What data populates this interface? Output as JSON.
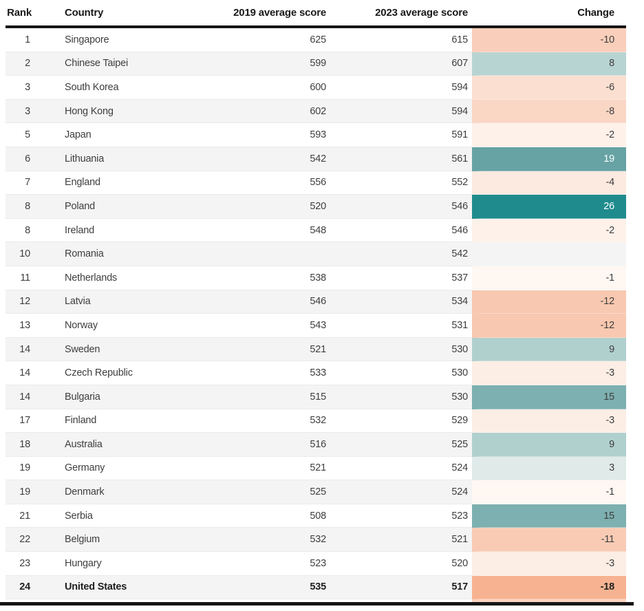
{
  "chart_data": {
    "type": "table",
    "columns": [
      "Rank",
      "Country",
      "2019 average score",
      "2023 average score",
      "Change"
    ],
    "rows": [
      {
        "rank": "1",
        "country": "Singapore",
        "score_2019": "625",
        "score_2023": "615",
        "change": "-10",
        "change_bg": "#f9ceba",
        "change_text_color": "#3e3e3e",
        "bold": false
      },
      {
        "rank": "2",
        "country": "Chinese Taipei",
        "score_2019": "599",
        "score_2023": "607",
        "change": "8",
        "change_bg": "#b8d4d2",
        "change_text_color": "#3e3e3e",
        "bold": false
      },
      {
        "rank": "3",
        "country": "South Korea",
        "score_2019": "600",
        "score_2023": "594",
        "change": "-6",
        "change_bg": "#fbdfd1",
        "change_text_color": "#3e3e3e",
        "bold": false
      },
      {
        "rank": "3",
        "country": "Hong Kong",
        "score_2019": "602",
        "score_2023": "594",
        "change": "-8",
        "change_bg": "#fad6c5",
        "change_text_color": "#3e3e3e",
        "bold": false
      },
      {
        "rank": "5",
        "country": "Japan",
        "score_2019": "593",
        "score_2023": "591",
        "change": "-2",
        "change_bg": "#fdf1ea",
        "change_text_color": "#3e3e3e",
        "bold": false
      },
      {
        "rank": "6",
        "country": "Lithuania",
        "score_2019": "542",
        "score_2023": "561",
        "change": "19",
        "change_bg": "#67a3a4",
        "change_text_color": "#ffffff",
        "bold": false
      },
      {
        "rank": "7",
        "country": "England",
        "score_2019": "556",
        "score_2023": "552",
        "change": "-4",
        "change_bg": "#fceae0",
        "change_text_color": "#3e3e3e",
        "bold": false
      },
      {
        "rank": "8",
        "country": "Poland",
        "score_2019": "520",
        "score_2023": "546",
        "change": "26",
        "change_bg": "#1f8b8d",
        "change_text_color": "#ffffff",
        "bold": false
      },
      {
        "rank": "8",
        "country": "Ireland",
        "score_2019": "548",
        "score_2023": "546",
        "change": "-2",
        "change_bg": "#fdf1ea",
        "change_text_color": "#3e3e3e",
        "bold": false
      },
      {
        "rank": "10",
        "country": "Romania",
        "score_2019": "",
        "score_2023": "542",
        "change": "",
        "change_bg": "",
        "change_text_color": "#3e3e3e",
        "bold": false
      },
      {
        "rank": "11",
        "country": "Netherlands",
        "score_2019": "538",
        "score_2023": "537",
        "change": "-1",
        "change_bg": "#fef7f2",
        "change_text_color": "#3e3e3e",
        "bold": false
      },
      {
        "rank": "12",
        "country": "Latvia",
        "score_2019": "546",
        "score_2023": "534",
        "change": "-12",
        "change_bg": "#f8c8b0",
        "change_text_color": "#3e3e3e",
        "bold": false
      },
      {
        "rank": "13",
        "country": "Norway",
        "score_2019": "543",
        "score_2023": "531",
        "change": "-12",
        "change_bg": "#f8c8b0",
        "change_text_color": "#3e3e3e",
        "bold": false
      },
      {
        "rank": "14",
        "country": "Sweden",
        "score_2019": "521",
        "score_2023": "530",
        "change": "9",
        "change_bg": "#b0d0ce",
        "change_text_color": "#3e3e3e",
        "bold": false
      },
      {
        "rank": "14",
        "country": "Czech Republic",
        "score_2019": "533",
        "score_2023": "530",
        "change": "-3",
        "change_bg": "#fceee5",
        "change_text_color": "#3e3e3e",
        "bold": false
      },
      {
        "rank": "14",
        "country": "Bulgaria",
        "score_2019": "515",
        "score_2023": "530",
        "change": "15",
        "change_bg": "#7db0b0",
        "change_text_color": "#3e3e3e",
        "bold": false
      },
      {
        "rank": "17",
        "country": "Finland",
        "score_2019": "532",
        "score_2023": "529",
        "change": "-3",
        "change_bg": "#fceee5",
        "change_text_color": "#3e3e3e",
        "bold": false
      },
      {
        "rank": "18",
        "country": "Australia",
        "score_2019": "516",
        "score_2023": "525",
        "change": "9",
        "change_bg": "#b0d0ce",
        "change_text_color": "#3e3e3e",
        "bold": false
      },
      {
        "rank": "19",
        "country": "Germany",
        "score_2019": "521",
        "score_2023": "524",
        "change": "3",
        "change_bg": "#e0eae9",
        "change_text_color": "#3e3e3e",
        "bold": false
      },
      {
        "rank": "19",
        "country": "Denmark",
        "score_2019": "525",
        "score_2023": "524",
        "change": "-1",
        "change_bg": "#fef7f2",
        "change_text_color": "#3e3e3e",
        "bold": false
      },
      {
        "rank": "21",
        "country": "Serbia",
        "score_2019": "508",
        "score_2023": "523",
        "change": "15",
        "change_bg": "#7db0b0",
        "change_text_color": "#3e3e3e",
        "bold": false
      },
      {
        "rank": "22",
        "country": "Belgium",
        "score_2019": "532",
        "score_2023": "521",
        "change": "-11",
        "change_bg": "#f9cbb5",
        "change_text_color": "#3e3e3e",
        "bold": false
      },
      {
        "rank": "23",
        "country": "Hungary",
        "score_2019": "523",
        "score_2023": "520",
        "change": "-3",
        "change_bg": "#fceee5",
        "change_text_color": "#3e3e3e",
        "bold": false
      },
      {
        "rank": "24",
        "country": "United States",
        "score_2019": "535",
        "score_2023": "517",
        "change": "-18",
        "change_bg": "#f7b391",
        "change_text_color": "#1f1f1f",
        "bold": true
      }
    ],
    "partial_next_row": {
      "visible": true,
      "change_bg": "#fbd3c0"
    },
    "layout": {
      "striped": true,
      "header_rule_color": "#141414",
      "bottom_rule_color": "#141414",
      "alt_row_bg": "#f4f4f4",
      "positive_color_max": "#1f8b8d",
      "negative_color_max": "#f7b391"
    }
  }
}
